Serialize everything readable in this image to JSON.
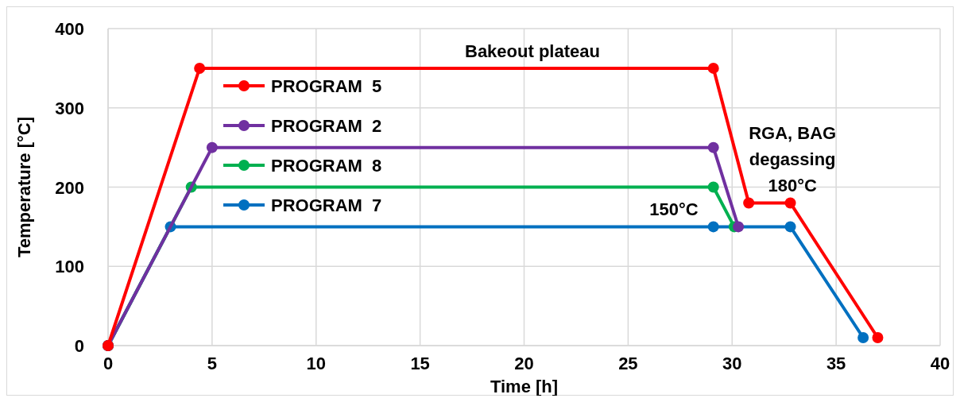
{
  "chart_data": {
    "type": "line",
    "xlabel": "Time [h]",
    "ylabel": "Temperature [°C]",
    "xlim": [
      0,
      40
    ],
    "xticks": [
      0,
      5,
      10,
      15,
      20,
      25,
      30,
      35,
      40
    ],
    "ylim": [
      0,
      400
    ],
    "yticks": [
      0,
      100,
      200,
      300,
      400
    ],
    "grid": true,
    "legend": "top left",
    "marker": "circle",
    "line_style": "solid",
    "series": [
      {
        "name": "PROGRAM  5",
        "color": "#ff0000",
        "x": [
          0,
          4.4,
          29.1,
          30.8,
          32.8,
          37
        ],
        "values": [
          0,
          350,
          350,
          180,
          180,
          10
        ]
      },
      {
        "name": "PROGRAM  2",
        "color": "#7030a0",
        "x": [
          0,
          5,
          29.1,
          30.3
        ],
        "values": [
          0,
          250,
          250,
          150
        ]
      },
      {
        "name": "PROGRAM  8",
        "color": "#00b050",
        "x": [
          0,
          4,
          29.1,
          30.1
        ],
        "values": [
          0,
          200,
          200,
          150
        ]
      },
      {
        "name": "PROGRAM  7",
        "color": "#0070c0",
        "x": [
          0,
          3,
          29.1,
          32.8,
          36.3
        ],
        "values": [
          0,
          150,
          150,
          150,
          10
        ]
      }
    ],
    "annotations": [
      {
        "text": "Bakeout plateau",
        "x": 20.4,
        "y": 350
      },
      {
        "text": "RGA, BAG degassing 180°C",
        "x": 32.9,
        "y": 180
      },
      {
        "text": "150°C",
        "x": 27.2,
        "y": 150
      }
    ]
  }
}
